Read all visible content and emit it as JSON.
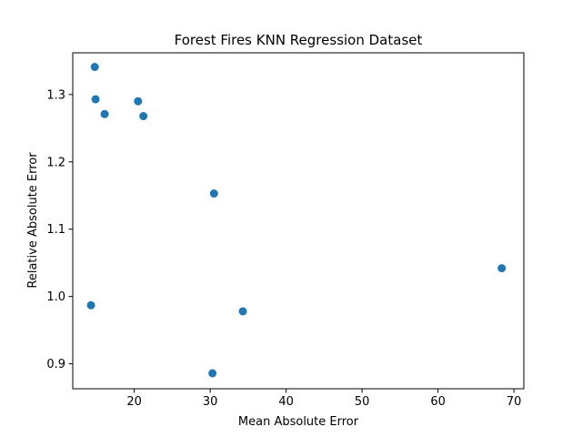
{
  "chart_data": {
    "type": "scatter",
    "title": "Forest Fires KNN Regression Dataset",
    "xlabel": "Mean Absolute Error",
    "ylabel": "Relative Absolute Error",
    "xlim": [
      11.9,
      71.3
    ],
    "ylim": [
      0.863,
      1.362
    ],
    "xticks": [
      20,
      30,
      40,
      50,
      60,
      70
    ],
    "yticks": [
      0.9,
      1.0,
      1.1,
      1.2,
      1.3
    ],
    "xtick_labels": [
      "20",
      "30",
      "40",
      "50",
      "60",
      "70"
    ],
    "ytick_labels": [
      "0.9",
      "1.0",
      "1.1",
      "1.2",
      "1.3"
    ],
    "grid": false,
    "marker_color": "#1f77b4",
    "points": [
      {
        "x": 14.8,
        "y": 1.341
      },
      {
        "x": 14.9,
        "y": 1.293
      },
      {
        "x": 16.1,
        "y": 1.271
      },
      {
        "x": 20.5,
        "y": 1.29
      },
      {
        "x": 21.2,
        "y": 1.268
      },
      {
        "x": 30.5,
        "y": 1.153
      },
      {
        "x": 68.4,
        "y": 1.042
      },
      {
        "x": 14.3,
        "y": 0.987
      },
      {
        "x": 34.3,
        "y": 0.978
      },
      {
        "x": 30.3,
        "y": 0.886
      }
    ]
  }
}
